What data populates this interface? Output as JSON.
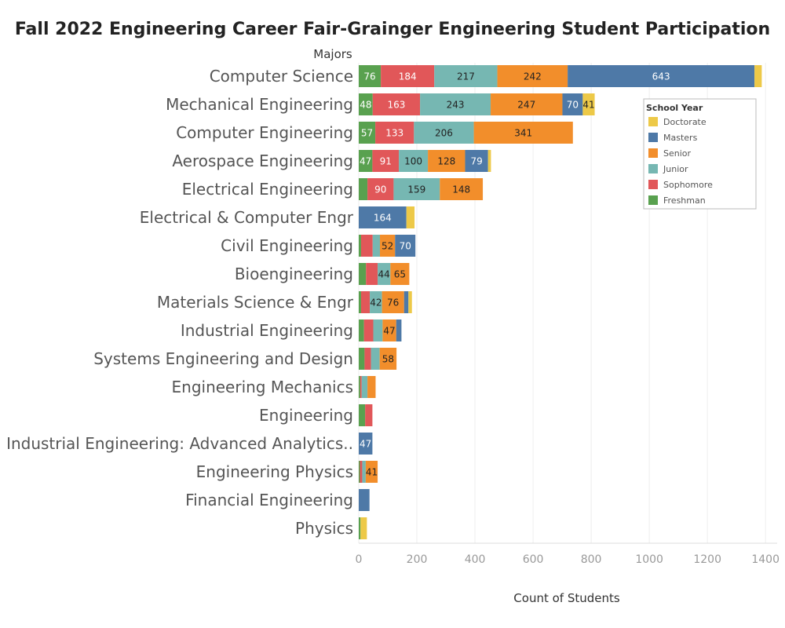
{
  "chart_data": {
    "type": "bar",
    "orientation": "horizontal",
    "stacked": true,
    "title": "Fall 2022 Engineering Career Fair-Grainger Engineering Student Participation",
    "category_header": "Majors",
    "xlabel": "Count of Students",
    "xlim": [
      0,
      1440
    ],
    "xticks": [
      0,
      200,
      400,
      600,
      800,
      1000,
      1200,
      1400
    ],
    "grid": true,
    "legend_title": "School Year",
    "legend_position": "right",
    "categories": [
      "Computer Science",
      "Mechanical Engineering",
      "Computer Engineering",
      "Aerospace Engineering",
      "Electrical Engineering",
      "Electrical & Computer Engr",
      "Civil Engineering",
      "Bioengineering",
      "Materials Science & Engr",
      "Industrial Engineering",
      "Systems Engineering and Design",
      "Engineering Mechanics",
      "Engineering",
      "Industrial Engineering: Advanced Analytics..",
      "Engineering Physics",
      "Financial Engineering",
      "Physics"
    ],
    "series": [
      {
        "name": "Freshman",
        "color": "#59a14f",
        "values": [
          76,
          48,
          57,
          47,
          30,
          0,
          8,
          25,
          8,
          18,
          20,
          5,
          22,
          0,
          4,
          0,
          6
        ]
      },
      {
        "name": "Sophomore",
        "color": "#e15759",
        "values": [
          184,
          163,
          133,
          91,
          90,
          0,
          40,
          40,
          30,
          32,
          22,
          5,
          25,
          0,
          8,
          0,
          0
        ]
      },
      {
        "name": "Junior",
        "color": "#76b7b2",
        "values": [
          217,
          243,
          206,
          100,
          159,
          0,
          25,
          44,
          42,
          32,
          30,
          20,
          0,
          0,
          12,
          0,
          0
        ]
      },
      {
        "name": "Senior",
        "color": "#f28e2b",
        "values": [
          242,
          247,
          341,
          128,
          148,
          0,
          52,
          65,
          76,
          47,
          58,
          28,
          0,
          0,
          41,
          0,
          0
        ]
      },
      {
        "name": "Masters",
        "color": "#4e79a7",
        "values": [
          643,
          70,
          0,
          79,
          0,
          164,
          70,
          0,
          15,
          18,
          0,
          0,
          0,
          47,
          0,
          37,
          0
        ]
      },
      {
        "name": "Doctorate",
        "color": "#edc948",
        "values": [
          25,
          41,
          0,
          10,
          0,
          28,
          0,
          0,
          12,
          0,
          0,
          0,
          0,
          0,
          0,
          0,
          22
        ]
      }
    ],
    "data_labels": [
      [
        "76",
        "184",
        "217",
        "242",
        "643",
        ""
      ],
      [
        "48",
        "163",
        "243",
        "247",
        "70",
        "41"
      ],
      [
        "57",
        "133",
        "206",
        "341",
        "",
        ""
      ],
      [
        "47",
        "91",
        "100",
        "128",
        "79",
        ""
      ],
      [
        "",
        "90",
        "159",
        "148",
        "",
        ""
      ],
      [
        "",
        "",
        "",
        "",
        "164",
        ""
      ],
      [
        "",
        "",
        "",
        "52",
        "70",
        ""
      ],
      [
        "",
        "",
        "44",
        "65",
        "",
        ""
      ],
      [
        "",
        "",
        "42",
        "76",
        "",
        ""
      ],
      [
        "",
        "",
        "",
        "47",
        "",
        ""
      ],
      [
        "",
        "",
        "",
        "58",
        "",
        ""
      ],
      [
        "",
        "",
        "",
        "",
        "",
        ""
      ],
      [
        "",
        "",
        "",
        "",
        "",
        ""
      ],
      [
        "",
        "",
        "",
        "",
        "47",
        ""
      ],
      [
        "",
        "",
        "",
        "41",
        "",
        ""
      ],
      [
        "",
        "",
        "",
        "",
        "",
        ""
      ],
      [
        "",
        "",
        "",
        "",
        "",
        ""
      ]
    ],
    "legend_order": [
      "Doctorate",
      "Masters",
      "Senior",
      "Junior",
      "Sophomore",
      "Freshman"
    ]
  }
}
